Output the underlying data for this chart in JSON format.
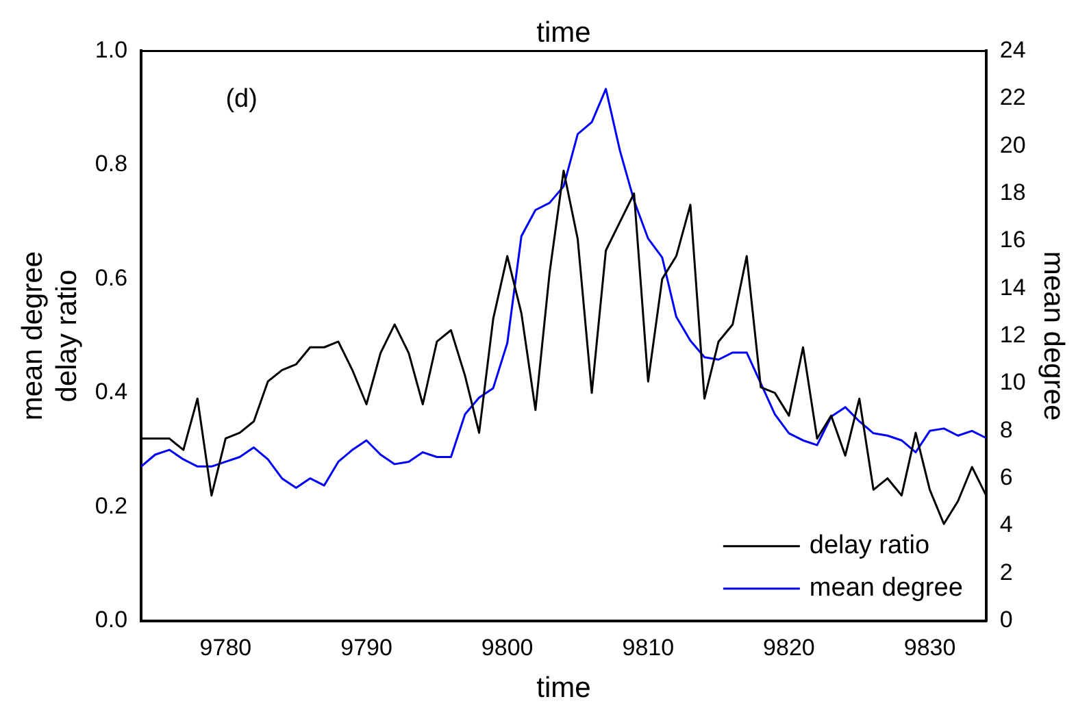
{
  "chart_data": {
    "type": "line",
    "x": [
      9774,
      9775,
      9776,
      9777,
      9778,
      9779,
      9780,
      9781,
      9782,
      9783,
      9784,
      9785,
      9786,
      9787,
      9788,
      9789,
      9790,
      9791,
      9792,
      9793,
      9794,
      9795,
      9796,
      9797,
      9798,
      9799,
      9800,
      9801,
      9802,
      9803,
      9804,
      9805,
      9806,
      9807,
      9808,
      9809,
      9810,
      9811,
      9812,
      9813,
      9814,
      9815,
      9816,
      9817,
      9818,
      9819,
      9820,
      9821,
      9822,
      9823,
      9824,
      9825,
      9826,
      9827,
      9828,
      9829,
      9830,
      9831,
      9832,
      9833,
      9834
    ],
    "series": [
      {
        "name": "delay ratio",
        "color": "#000000",
        "values": [
          0.32,
          0.32,
          0.32,
          0.3,
          0.39,
          0.22,
          0.32,
          0.33,
          0.35,
          0.42,
          0.44,
          0.45,
          0.48,
          0.48,
          0.49,
          0.44,
          0.38,
          0.47,
          0.52,
          0.47,
          0.38,
          0.49,
          0.51,
          0.43,
          0.33,
          0.53,
          0.64,
          0.54,
          0.37,
          0.61,
          0.79,
          0.67,
          0.4,
          0.65,
          0.7,
          0.75,
          0.42,
          0.6,
          0.64,
          0.73,
          0.39,
          0.49,
          0.52,
          0.64,
          0.41,
          0.4,
          0.36,
          0.48,
          0.32,
          0.36,
          0.29,
          0.39,
          0.23,
          0.25,
          0.22,
          0.33,
          0.23,
          0.17,
          0.21,
          0.27,
          0.22
        ]
      },
      {
        "name": "mean degree",
        "color": "#0000ff",
        "axis": "y2",
        "values": [
          6.5,
          7.0,
          7.2,
          6.8,
          6.5,
          6.5,
          6.7,
          6.9,
          7.3,
          6.8,
          6.0,
          5.6,
          6.0,
          5.7,
          6.7,
          7.2,
          7.6,
          7.0,
          6.6,
          6.7,
          7.1,
          6.9,
          6.9,
          8.7,
          9.4,
          9.8,
          11.7,
          16.2,
          17.3,
          17.6,
          18.3,
          20.5,
          21.0,
          22.4,
          19.8,
          17.7,
          16.1,
          15.3,
          12.8,
          11.8,
          11.1,
          11.0,
          11.3,
          11.3,
          10.0,
          8.7,
          7.9,
          7.6,
          7.4,
          8.6,
          9.0,
          8.4,
          7.9,
          7.8,
          7.6,
          7.1,
          8.0,
          8.1,
          7.8,
          8.0,
          7.7
        ]
      }
    ],
    "xlabel": "time",
    "x2label": "time",
    "ylabel": "mean degree\ndelay ratio",
    "y2label": "mean degree",
    "xlim": [
      9774,
      9834
    ],
    "xticks": [
      9780,
      9790,
      9800,
      9810,
      9820,
      9830
    ],
    "ylim": [
      0,
      1
    ],
    "yticks": [
      {
        "value": 0,
        "label": "0.0"
      },
      0.2,
      0.4,
      0.6,
      0.8,
      {
        "value": 1,
        "label": "1.0"
      }
    ],
    "y2lim": [
      0,
      24
    ],
    "y2ticks": [
      0,
      2,
      4,
      6,
      8,
      10,
      12,
      14,
      16,
      18,
      20,
      22,
      24
    ],
    "annotations": [
      "(d)"
    ],
    "legend": "bottom right",
    "grid": false,
    "marker": "none",
    "line_style": "solid"
  }
}
